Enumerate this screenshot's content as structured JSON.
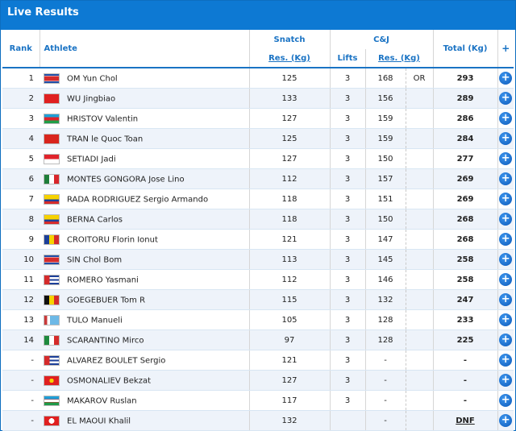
{
  "title": "Live Results",
  "headers": {
    "rank": "Rank",
    "athlete": "Athlete",
    "snatch": "Snatch",
    "cj": "C&J",
    "snatch_res": "Res. (Kg)",
    "lifts": "Lifts",
    "cj_res": "Res. (Kg)",
    "total": "Total (Kg)",
    "plus": "+"
  },
  "rows": [
    {
      "rank": "1",
      "name": "OM Yun Chol",
      "flag": "PRK",
      "snatch": "125",
      "lifts": "3",
      "cj": "168",
      "rec": "OR",
      "total": "293"
    },
    {
      "rank": "2",
      "name": "WU Jingbiao",
      "flag": "CHN",
      "snatch": "133",
      "lifts": "3",
      "cj": "156",
      "rec": "",
      "total": "289"
    },
    {
      "rank": "3",
      "name": "HRISTOV Valentin",
      "flag": "AZE",
      "snatch": "127",
      "lifts": "3",
      "cj": "159",
      "rec": "",
      "total": "286"
    },
    {
      "rank": "4",
      "name": "TRAN le Quoc Toan",
      "flag": "VIE",
      "snatch": "125",
      "lifts": "3",
      "cj": "159",
      "rec": "",
      "total": "284"
    },
    {
      "rank": "5",
      "name": "SETIADI Jadi",
      "flag": "INA",
      "snatch": "127",
      "lifts": "3",
      "cj": "150",
      "rec": "",
      "total": "277"
    },
    {
      "rank": "6",
      "name": "MONTES GONGORA Jose Lino",
      "flag": "MEX",
      "snatch": "112",
      "lifts": "3",
      "cj": "157",
      "rec": "",
      "total": "269"
    },
    {
      "rank": "7",
      "name": "RADA RODRIGUEZ Sergio Armando",
      "flag": "COL",
      "snatch": "118",
      "lifts": "3",
      "cj": "151",
      "rec": "",
      "total": "269"
    },
    {
      "rank": "8",
      "name": "BERNA Carlos",
      "flag": "COL",
      "snatch": "118",
      "lifts": "3",
      "cj": "150",
      "rec": "",
      "total": "268"
    },
    {
      "rank": "9",
      "name": "CROITORU Florin Ionut",
      "flag": "ROU",
      "snatch": "121",
      "lifts": "3",
      "cj": "147",
      "rec": "",
      "total": "268"
    },
    {
      "rank": "10",
      "name": "SIN Chol Bom",
      "flag": "PRK",
      "snatch": "113",
      "lifts": "3",
      "cj": "145",
      "rec": "",
      "total": "258"
    },
    {
      "rank": "11",
      "name": "ROMERO Yasmani",
      "flag": "CUB",
      "snatch": "112",
      "lifts": "3",
      "cj": "146",
      "rec": "",
      "total": "258"
    },
    {
      "rank": "12",
      "name": "GOEGEBUER Tom R",
      "flag": "BEL",
      "snatch": "115",
      "lifts": "3",
      "cj": "132",
      "rec": "",
      "total": "247"
    },
    {
      "rank": "13",
      "name": "TULO Manueli",
      "flag": "FIJ",
      "snatch": "105",
      "lifts": "3",
      "cj": "128",
      "rec": "",
      "total": "233"
    },
    {
      "rank": "14",
      "name": "SCARANTINO Mirco",
      "flag": "ITA",
      "snatch": "97",
      "lifts": "3",
      "cj": "128",
      "rec": "",
      "total": "225"
    },
    {
      "rank": "-",
      "name": "ALVAREZ BOULET Sergio",
      "flag": "CUB",
      "snatch": "121",
      "lifts": "3",
      "cj": "-",
      "rec": "",
      "total": "-"
    },
    {
      "rank": "-",
      "name": "OSMONALIEV Bekzat",
      "flag": "KGZ",
      "snatch": "127",
      "lifts": "3",
      "cj": "-",
      "rec": "",
      "total": "-"
    },
    {
      "rank": "-",
      "name": "MAKAROV Ruslan",
      "flag": "UZB",
      "snatch": "117",
      "lifts": "3",
      "cj": "-",
      "rec": "",
      "total": "-"
    },
    {
      "rank": "-",
      "name": "EL MAOUI Khalil",
      "flag": "TUN",
      "snatch": "132",
      "lifts": "",
      "cj": "-",
      "rec": "",
      "total": "DNF"
    }
  ]
}
